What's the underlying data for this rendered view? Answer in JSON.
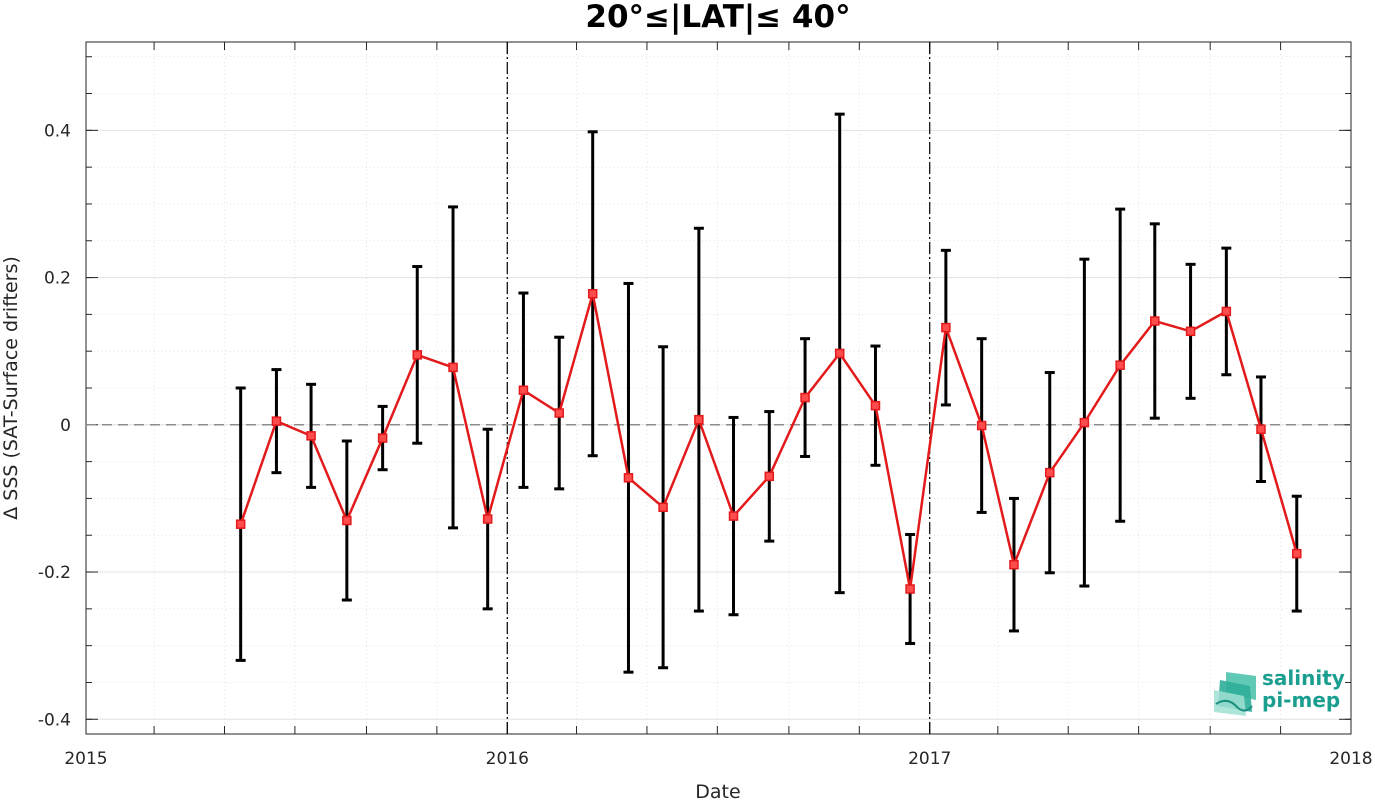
{
  "chart_data": {
    "type": "line",
    "title": "20°≤|LAT|≤ 40°",
    "xlabel": "Date",
    "ylabel": "Δ SSS (SAT-Surface drifters)",
    "xlim": [
      "2015-01-01",
      "2018-01-01"
    ],
    "ylim": [
      -0.42,
      0.52
    ],
    "x_ticks": [
      "2015",
      "2016",
      "2017",
      "2018"
    ],
    "y_ticks": [
      "-0.4",
      "-0.2",
      "0",
      "0.2",
      "0.4"
    ],
    "grid": true,
    "reference_line": 0,
    "year_boundaries": [
      "2016-01-01",
      "2017-01-01"
    ],
    "series": [
      {
        "x": [
          "2015-05-15",
          "2015-06-15",
          "2015-07-15",
          "2015-08-15",
          "2015-09-15",
          "2015-10-15",
          "2015-11-15",
          "2015-12-15",
          "2016-01-15",
          "2016-02-15",
          "2016-03-15",
          "2016-04-15",
          "2016-05-15",
          "2016-06-15",
          "2016-07-15",
          "2016-08-15",
          "2016-09-15",
          "2016-10-15",
          "2016-11-15",
          "2016-12-15",
          "2017-01-15",
          "2017-02-15",
          "2017-03-15",
          "2017-04-15",
          "2017-05-15",
          "2017-06-15",
          "2017-07-15",
          "2017-08-15",
          "2017-09-15",
          "2017-10-15",
          "2017-11-15"
        ],
        "values": [
          -0.135,
          0.005,
          -0.015,
          -0.13,
          -0.018,
          0.095,
          0.078,
          -0.128,
          0.047,
          0.016,
          0.178,
          -0.072,
          -0.112,
          0.007,
          -0.124,
          -0.07,
          0.037,
          0.097,
          0.026,
          -0.223,
          0.132,
          -0.001,
          -0.19,
          -0.065,
          0.003,
          0.081,
          0.141,
          0.127,
          0.154,
          -0.006,
          -0.175
        ],
        "error": [
          0.185,
          0.07,
          0.07,
          0.108,
          0.043,
          0.12,
          0.218,
          0.122,
          0.132,
          0.103,
          0.22,
          0.264,
          0.218,
          0.26,
          0.134,
          0.088,
          0.08,
          0.325,
          0.081,
          0.074,
          0.105,
          0.118,
          0.09,
          0.136,
          0.222,
          0.212,
          0.132,
          0.091,
          0.086,
          0.071,
          0.078
        ],
        "color": "#e31a1c"
      }
    ]
  },
  "logo": {
    "line1": "salinity",
    "line2": "pi-mep",
    "color": "#1a9e8f"
  }
}
